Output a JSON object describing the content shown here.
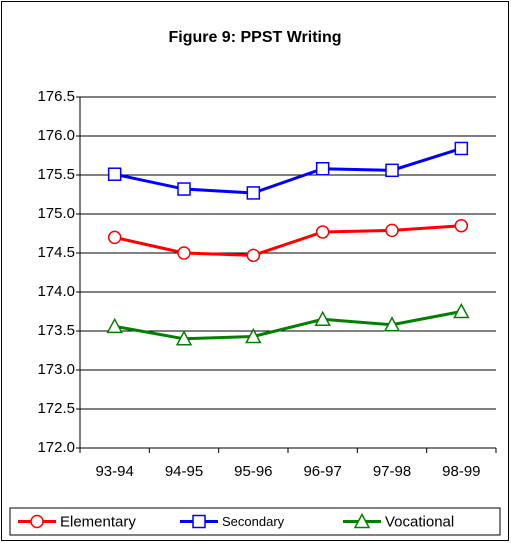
{
  "chart_data": {
    "type": "line",
    "title": "Figure 9:  PPST Writing",
    "categories": [
      "93-94",
      "94-95",
      "95-96",
      "96-97",
      "97-98",
      "98-99"
    ],
    "series": [
      {
        "name": "Elementary",
        "color": "#ff0000",
        "marker": "circle",
        "values": [
          174.7,
          174.5,
          174.47,
          174.77,
          174.79,
          174.85
        ]
      },
      {
        "name": "Secondary",
        "color": "#0000ff",
        "marker": "square",
        "values": [
          175.51,
          175.32,
          175.27,
          175.58,
          175.56,
          175.84
        ]
      },
      {
        "name": "Vocational",
        "color": "#008000",
        "marker": "triangle",
        "values": [
          173.56,
          173.4,
          173.43,
          173.65,
          173.58,
          173.75
        ]
      }
    ],
    "ylim": [
      172,
      176.5
    ],
    "yticks": [
      {
        "value": 172,
        "label": "172.0"
      },
      172.5,
      {
        "value": 173,
        "label": "173.0"
      },
      173.5,
      {
        "value": 174,
        "label": "174.0"
      },
      174.5,
      {
        "value": 175,
        "label": "175.0"
      },
      175.5,
      {
        "value": 176,
        "label": "176.0"
      },
      176.5
    ],
    "grid": true,
    "legend": "bottom"
  }
}
